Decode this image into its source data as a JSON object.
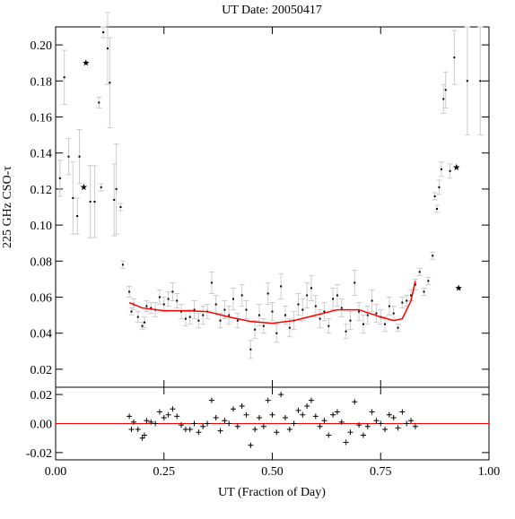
{
  "chart_data": [
    {
      "type": "scatter",
      "title": "UT Date: 20050417",
      "y_label": "225 GHz CSO-τ",
      "xlim": [
        0,
        1
      ],
      "xticks": [
        0,
        0.25,
        0.5,
        0.75,
        1
      ],
      "ylim": [
        0.01,
        0.21
      ],
      "yticks": [
        0.02,
        0.04,
        0.06,
        0.08,
        {
          "value": 0.1,
          "label": "0.10"
        },
        0.12,
        0.14,
        0.16,
        0.18,
        {
          "value": 0.2,
          "label": "0.20"
        }
      ],
      "series": [
        {
          "marker": "dot",
          "color": "#000000",
          "error_color": "#cccccc",
          "x": [
            0.01,
            0.02,
            0.03,
            0.04,
            0.05,
            0.055,
            0.08,
            0.09,
            0.1,
            0.105,
            0.11,
            0.12,
            0.125,
            0.135,
            0.14,
            0.15,
            0.155,
            0.17,
            0.175,
            0.18,
            0.19,
            0.2,
            0.205,
            0.21,
            0.22,
            0.23,
            0.24,
            0.25,
            0.26,
            0.27,
            0.28,
            0.29,
            0.3,
            0.31,
            0.32,
            0.33,
            0.34,
            0.35,
            0.36,
            0.37,
            0.38,
            0.39,
            0.4,
            0.41,
            0.42,
            0.43,
            0.44,
            0.45,
            0.46,
            0.47,
            0.48,
            0.49,
            0.5,
            0.51,
            0.52,
            0.53,
            0.54,
            0.55,
            0.56,
            0.57,
            0.58,
            0.59,
            0.6,
            0.61,
            0.62,
            0.63,
            0.64,
            0.65,
            0.66,
            0.67,
            0.68,
            0.69,
            0.7,
            0.71,
            0.72,
            0.73,
            0.74,
            0.75,
            0.76,
            0.77,
            0.78,
            0.79,
            0.8,
            0.81,
            0.82,
            0.83,
            0.84,
            0.85,
            0.86,
            0.87,
            0.875,
            0.88,
            0.885,
            0.89,
            0.895,
            0.9,
            0.91,
            0.92,
            0.95,
            0.98
          ],
          "values": [
            0.126,
            0.182,
            0.138,
            0.115,
            0.105,
            0.138,
            0.113,
            0.113,
            0.168,
            0.121,
            0.207,
            0.198,
            0.179,
            0.114,
            0.12,
            0.11,
            0.078,
            0.063,
            0.052,
            0.056,
            0.049,
            0.044,
            0.046,
            0.055,
            0.054,
            0.053,
            0.06,
            0.056,
            0.059,
            0.063,
            0.058,
            0.052,
            0.048,
            0.049,
            0.053,
            0.047,
            0.05,
            0.052,
            0.068,
            0.056,
            0.047,
            0.053,
            0.05,
            0.059,
            0.047,
            0.061,
            0.053,
            0.031,
            0.042,
            0.05,
            0.044,
            0.062,
            0.052,
            0.04,
            0.066,
            0.05,
            0.043,
            0.047,
            0.056,
            0.053,
            0.061,
            0.065,
            0.055,
            0.048,
            0.052,
            0.044,
            0.059,
            0.061,
            0.054,
            0.041,
            0.047,
            0.068,
            0.052,
            0.045,
            0.05,
            0.058,
            0.051,
            0.049,
            0.045,
            0.055,
            0.051,
            0.043,
            0.057,
            0.058,
            0.061,
            0.067,
            0.074,
            0.063,
            0.069,
            0.083,
            0.116,
            0.109,
            0.121,
            0.131,
            0.17,
            0.175,
            0.13,
            0.193,
            0.18,
            0.18
          ],
          "errors": [
            0.01,
            0.015,
            0.01,
            0.02,
            0.01,
            0.015,
            0.02,
            0.02,
            0.003,
            0.002,
            0.003,
            0.02,
            0.025,
            0.02,
            0.025,
            0.002,
            0.002,
            0.003,
            0.002,
            0.003,
            0.003,
            0.002,
            0.003,
            0.003,
            0.003,
            0.004,
            0.004,
            0.004,
            0.004,
            0.005,
            0.004,
            0.004,
            0.004,
            0.004,
            0.005,
            0.004,
            0.005,
            0.004,
            0.006,
            0.005,
            0.004,
            0.005,
            0.005,
            0.006,
            0.004,
            0.006,
            0.005,
            0.005,
            0.005,
            0.006,
            0.004,
            0.006,
            0.005,
            0.005,
            0.007,
            0.005,
            0.005,
            0.005,
            0.006,
            0.006,
            0.007,
            0.007,
            0.006,
            0.005,
            0.005,
            0.004,
            0.006,
            0.006,
            0.005,
            0.004,
            0.005,
            0.007,
            0.005,
            0.005,
            0.005,
            0.006,
            0.005,
            0.004,
            0.004,
            0.005,
            0.004,
            0.002,
            0.003,
            0.003,
            0.003,
            0.003,
            0.002,
            0.002,
            0.002,
            0.002,
            0.002,
            0.002,
            0.004,
            0.004,
            0.008,
            0.01,
            0.004,
            0.015,
            0.03,
            0.03
          ]
        },
        {
          "marker": "star",
          "color": "#000000",
          "x": [
            0.065,
            0.07,
            0.925,
            0.93
          ],
          "values": [
            0.121,
            0.19,
            0.132,
            0.065
          ]
        },
        {
          "marker": "line",
          "color": "#ff0000",
          "x": [
            0.17,
            0.2,
            0.25,
            0.3,
            0.35,
            0.4,
            0.45,
            0.5,
            0.55,
            0.6,
            0.65,
            0.7,
            0.75,
            0.78,
            0.8,
            0.82,
            0.83
          ],
          "values": [
            0.057,
            0.054,
            0.0525,
            0.0525,
            0.052,
            0.049,
            0.0465,
            0.0455,
            0.047,
            0.05,
            0.053,
            0.053,
            0.049,
            0.047,
            0.048,
            0.058,
            0.069
          ]
        }
      ]
    },
    {
      "type": "scatter",
      "x_label": "UT (Fraction of Day)",
      "xlim": [
        0,
        1
      ],
      "xticks": [
        {
          "value": 0,
          "label": "0.00"
        },
        0.25,
        {
          "value": 0.5,
          "label": "0.50"
        },
        0.75,
        {
          "value": 1,
          "label": "1.00"
        }
      ],
      "ylim": [
        -0.025,
        0.025
      ],
      "yticks": [
        -0.02,
        {
          "value": 0,
          "label": "0.00"
        },
        0.02
      ],
      "zero_line_color": "#ff0000",
      "series": [
        {
          "marker": "plus",
          "color": "#000000",
          "x": [
            0.17,
            0.175,
            0.18,
            0.19,
            0.2,
            0.205,
            0.21,
            0.22,
            0.23,
            0.24,
            0.25,
            0.26,
            0.27,
            0.28,
            0.29,
            0.3,
            0.31,
            0.32,
            0.33,
            0.34,
            0.35,
            0.36,
            0.37,
            0.38,
            0.39,
            0.4,
            0.41,
            0.42,
            0.43,
            0.44,
            0.45,
            0.46,
            0.47,
            0.48,
            0.49,
            0.5,
            0.51,
            0.52,
            0.53,
            0.54,
            0.55,
            0.56,
            0.57,
            0.58,
            0.59,
            0.6,
            0.61,
            0.62,
            0.63,
            0.64,
            0.65,
            0.66,
            0.67,
            0.68,
            0.69,
            0.7,
            0.71,
            0.72,
            0.73,
            0.74,
            0.75,
            0.76,
            0.77,
            0.78,
            0.79,
            0.8,
            0.81,
            0.82,
            0.83
          ],
          "values": [
            0.005,
            -0.004,
            0.001,
            -0.004,
            -0.01,
            -0.008,
            0.002,
            0.001,
            0,
            0.008,
            0.004,
            0.006,
            0.01,
            0.005,
            -0.001,
            -0.004,
            -0.004,
            0,
            -0.006,
            -0.002,
            0,
            0.016,
            0.004,
            -0.005,
            0.002,
            0,
            0.01,
            -0.002,
            0.012,
            0.006,
            -0.015,
            -0.004,
            0.004,
            -0.002,
            0.016,
            0.006,
            -0.006,
            0.02,
            0.004,
            -0.004,
            0,
            0.009,
            0.006,
            0.012,
            0.016,
            0.005,
            -0.002,
            0.002,
            -0.008,
            0.006,
            0.008,
            0.001,
            -0.013,
            -0.006,
            0.015,
            -0.001,
            -0.008,
            -0.002,
            0.008,
            0.002,
            0,
            -0.004,
            0.006,
            0.004,
            -0.003,
            0.008,
            0,
            0.002,
            -0.002
          ]
        }
      ]
    }
  ]
}
